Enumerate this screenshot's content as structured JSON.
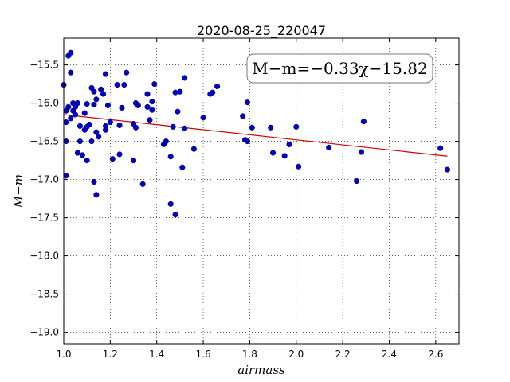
{
  "chart_data": {
    "type": "scatter",
    "title": "2020-08-25_220047",
    "xlabel": "airmass",
    "ylabel": "M−m",
    "annotation": "M−m=−0.33χ−15.82",
    "xlim": [
      1.0,
      2.7
    ],
    "ylim": [
      -19.15,
      -15.15
    ],
    "y_inverted": false,
    "grid": true,
    "x_ticks": [
      1.0,
      1.2,
      1.4,
      1.6,
      1.8,
      2.0,
      2.2,
      2.4,
      2.6
    ],
    "x_tick_labels": [
      "1.0",
      "1.2",
      "1.4",
      "1.6",
      "1.8",
      "2.0",
      "2.2",
      "2.4",
      "2.6"
    ],
    "y_ticks": [
      -15.5,
      -16.0,
      -16.5,
      -17.0,
      -17.5,
      -18.0,
      -18.5,
      -19.0
    ],
    "y_tick_labels": [
      "−15.5",
      "−16.0",
      "−16.5",
      "−17.0",
      "−17.5",
      "−18.0",
      "−18.5",
      "−19.0"
    ],
    "point_color": "#0000cc",
    "fit_color": "#cc0000",
    "fit": {
      "slope": -0.33,
      "intercept": -15.82,
      "x_range": [
        1.0,
        2.65
      ]
    },
    "points": [
      [
        1.0,
        -15.76
      ],
      [
        1.01,
        -16.1
      ],
      [
        1.01,
        -16.5
      ],
      [
        1.01,
        -16.95
      ],
      [
        1.01,
        -16.25
      ],
      [
        1.02,
        -16.05
      ],
      [
        1.02,
        -15.38
      ],
      [
        1.03,
        -15.34
      ],
      [
        1.03,
        -15.6
      ],
      [
        1.03,
        -16.2
      ],
      [
        1.04,
        -16.1
      ],
      [
        1.04,
        -16.0
      ],
      [
        1.05,
        -16.05
      ],
      [
        1.05,
        -16.15
      ],
      [
        1.06,
        -16.0
      ],
      [
        1.06,
        -16.65
      ],
      [
        1.07,
        -16.3
      ],
      [
        1.07,
        -16.5
      ],
      [
        1.08,
        -16.68
      ],
      [
        1.09,
        -16.13
      ],
      [
        1.09,
        -16.35
      ],
      [
        1.1,
        -16.01
      ],
      [
        1.1,
        -16.31
      ],
      [
        1.1,
        -16.75
      ],
      [
        1.11,
        -16.28
      ],
      [
        1.12,
        -15.8
      ],
      [
        1.12,
        -16.5
      ],
      [
        1.13,
        -16.02
      ],
      [
        1.13,
        -17.03
      ],
      [
        1.13,
        -15.85
      ],
      [
        1.14,
        -15.95
      ],
      [
        1.14,
        -16.38
      ],
      [
        1.14,
        -17.2
      ],
      [
        1.15,
        -16.44
      ],
      [
        1.16,
        -15.82
      ],
      [
        1.17,
        -15.88
      ],
      [
        1.18,
        -16.3
      ],
      [
        1.18,
        -16.35
      ],
      [
        1.18,
        -15.62
      ],
      [
        1.19,
        -16.03
      ],
      [
        1.2,
        -16.25
      ],
      [
        1.21,
        -16.73
      ],
      [
        1.23,
        -15.76
      ],
      [
        1.24,
        -16.29
      ],
      [
        1.24,
        -16.67
      ],
      [
        1.25,
        -16.06
      ],
      [
        1.26,
        -15.76
      ],
      [
        1.27,
        -15.6
      ],
      [
        1.3,
        -16.27
      ],
      [
        1.3,
        -16.75
      ],
      [
        1.31,
        -16.0
      ],
      [
        1.31,
        -16.32
      ],
      [
        1.32,
        -16.03
      ],
      [
        1.34,
        -17.06
      ],
      [
        1.36,
        -15.88
      ],
      [
        1.36,
        -16.05
      ],
      [
        1.37,
        -16.22
      ],
      [
        1.38,
        -16.09
      ],
      [
        1.38,
        -15.98
      ],
      [
        1.39,
        -15.75
      ],
      [
        1.43,
        -16.54
      ],
      [
        1.44,
        -16.5
      ],
      [
        1.46,
        -16.7
      ],
      [
        1.46,
        -17.32
      ],
      [
        1.47,
        -16.31
      ],
      [
        1.48,
        -17.46
      ],
      [
        1.48,
        -15.86
      ],
      [
        1.49,
        -16.11
      ],
      [
        1.5,
        -15.85
      ],
      [
        1.51,
        -16.84
      ],
      [
        1.52,
        -15.67
      ],
      [
        1.52,
        -16.33
      ],
      [
        1.56,
        -16.6
      ],
      [
        1.6,
        -16.19
      ],
      [
        1.63,
        -15.88
      ],
      [
        1.64,
        -15.86
      ],
      [
        1.66,
        -15.78
      ],
      [
        1.77,
        -16.17
      ],
      [
        1.78,
        -16.48
      ],
      [
        1.79,
        -16.5
      ],
      [
        1.79,
        -15.99
      ],
      [
        1.81,
        -16.32
      ],
      [
        1.89,
        -16.32
      ],
      [
        1.9,
        -16.65
      ],
      [
        1.95,
        -16.69
      ],
      [
        1.97,
        -16.54
      ],
      [
        2.0,
        -16.31
      ],
      [
        2.01,
        -16.83
      ],
      [
        2.14,
        -16.58
      ],
      [
        2.26,
        -17.02
      ],
      [
        2.28,
        -16.64
      ],
      [
        2.29,
        -16.24
      ],
      [
        2.62,
        -16.59
      ],
      [
        2.65,
        -16.87
      ]
    ]
  }
}
